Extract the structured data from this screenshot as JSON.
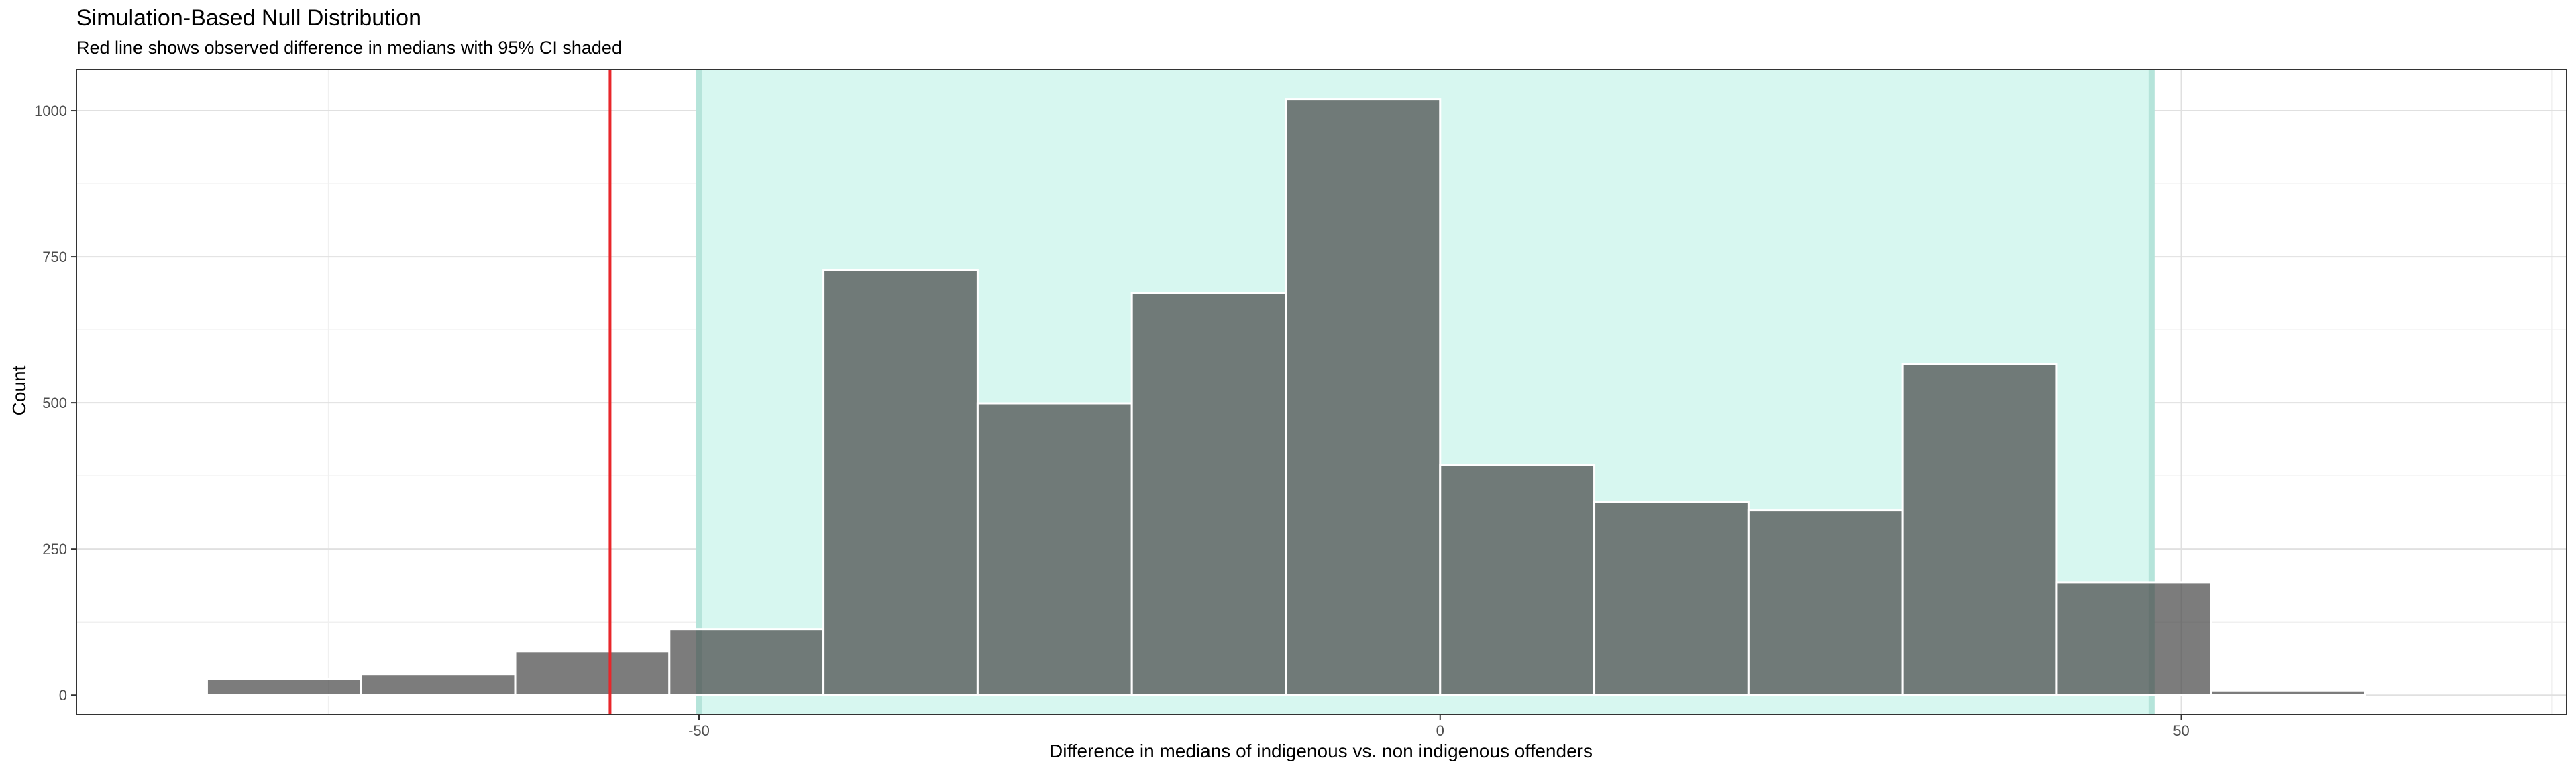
{
  "chart_data": {
    "type": "bar",
    "title": "Simulation-Based Null Distribution",
    "subtitle": "Red line shows observed difference in medians with 95% CI shaded",
    "xlabel": "Difference in medians of indigenous vs. non indigenous offenders",
    "ylabel": "Count",
    "xlim": [
      -92,
      76
    ],
    "ylim": [
      -33,
      1070
    ],
    "x_ticks": [
      -50,
      0,
      50
    ],
    "x_tick_labels": [
      "-50",
      "0",
      "50"
    ],
    "y_ticks": [
      0,
      250,
      500,
      750,
      1000
    ],
    "y_tick_labels": [
      "0",
      "250",
      "500",
      "750",
      "1000"
    ],
    "grid": true,
    "bin_width": 10.4,
    "bins": [
      {
        "center": -88.4,
        "count": 4
      },
      {
        "center": -78.0,
        "count": 28
      },
      {
        "center": -67.6,
        "count": 35
      },
      {
        "center": -57.2,
        "count": 75
      },
      {
        "center": -46.8,
        "count": 113
      },
      {
        "center": -36.4,
        "count": 727
      },
      {
        "center": -26.0,
        "count": 499
      },
      {
        "center": -15.6,
        "count": 688
      },
      {
        "center": -5.2,
        "count": 1020
      },
      {
        "center": 5.2,
        "count": 394
      },
      {
        "center": 15.6,
        "count": 331
      },
      {
        "center": 26.0,
        "count": 316
      },
      {
        "center": 36.4,
        "count": 567
      },
      {
        "center": 46.8,
        "count": 193
      },
      {
        "center": 57.2,
        "count": 8
      }
    ],
    "observed_difference": -56,
    "ci_95": [
      -50,
      48
    ],
    "colors": {
      "bar_fill": "#454545",
      "bar_outline": "#ffffff",
      "ci_shade": "#d7f7f0",
      "ci_edge": "#b5e4da",
      "observed_line": "#e8262a",
      "grid_major": "#e0e0e0",
      "grid_minor": "#f0f0f0",
      "panel_border": "#333333"
    }
  }
}
